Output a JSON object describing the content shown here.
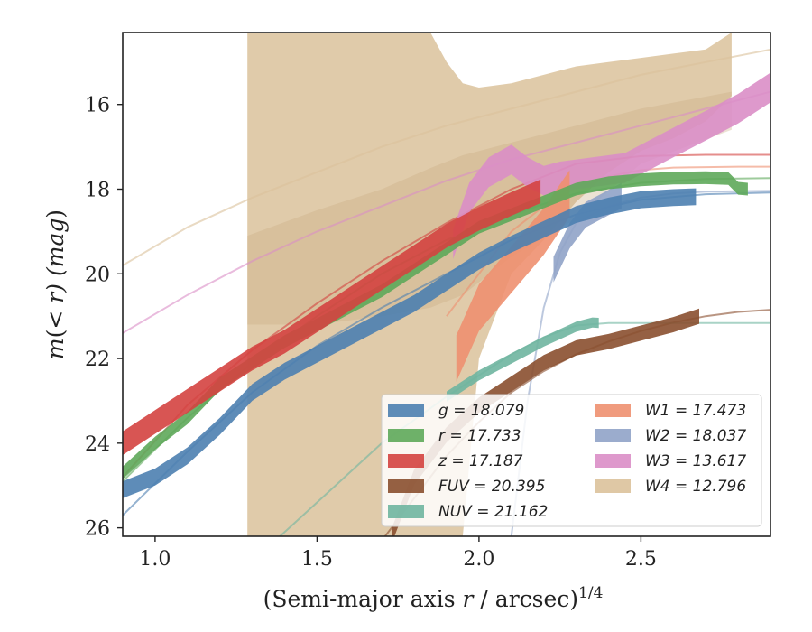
{
  "chart_data": {
    "type": "line",
    "xlabel": "(Semi-major axis r / arcsec)",
    "xlabel_sup": "1/4",
    "ylabel": "m(< r) (mag)",
    "xlim": [
      0.9,
      2.9
    ],
    "ylim": [
      26.2,
      14.3
    ],
    "y_inverted": true,
    "grid": false,
    "legend_position": "lower-right",
    "x_ticks": [
      1.0,
      1.5,
      2.0,
      2.5
    ],
    "x_tick_labels": [
      "1.0",
      "1.5",
      "2.0",
      "2.5"
    ],
    "y_ticks": [
      16,
      18,
      20,
      22,
      24,
      26
    ],
    "y_tick_labels": [
      "16",
      "18",
      "20",
      "22",
      "24",
      "26"
    ],
    "series": [
      {
        "name": "g = 18.079",
        "color": "#4c7fb0",
        "data_x": [
          0.9,
          1.0,
          1.1,
          1.2,
          1.3,
          1.4,
          1.5,
          1.6,
          1.7,
          1.8,
          1.9,
          2.0,
          2.1,
          2.2,
          2.3,
          2.4,
          2.5,
          2.6,
          2.67
        ],
        "data_y": [
          25.1,
          24.8,
          24.3,
          23.6,
          22.8,
          22.3,
          21.9,
          21.5,
          21.1,
          20.7,
          20.2,
          19.7,
          19.3,
          18.95,
          18.6,
          18.4,
          18.25,
          18.2,
          18.18
        ],
        "band_halfwidth": 0.2,
        "model_x": [
          0.9,
          1.1,
          1.3,
          1.5,
          1.7,
          1.9,
          2.1,
          2.3,
          2.5,
          2.7,
          2.9
        ],
        "model_y": [
          25.7,
          24.2,
          22.8,
          21.7,
          20.8,
          20.0,
          19.2,
          18.6,
          18.25,
          18.12,
          18.08
        ]
      },
      {
        "name": "r = 17.733",
        "color": "#5ea85a",
        "data_x": [
          0.9,
          1.0,
          1.1,
          1.2,
          1.3,
          1.4,
          1.5,
          1.6,
          1.7,
          1.8,
          1.9,
          2.0,
          2.1,
          2.2,
          2.3,
          2.4,
          2.5,
          2.6,
          2.7,
          2.77,
          2.8,
          2.83
        ],
        "data_y": [
          24.7,
          24.0,
          23.4,
          22.6,
          22.1,
          21.6,
          21.2,
          20.8,
          20.4,
          19.9,
          19.4,
          18.9,
          18.6,
          18.3,
          18.0,
          17.85,
          17.78,
          17.74,
          17.73,
          17.75,
          17.98,
          18.0
        ],
        "band_halfwidth": 0.15,
        "model_x": [
          0.9,
          1.1,
          1.3,
          1.5,
          1.7,
          1.9,
          2.1,
          2.3,
          2.5,
          2.7,
          2.9
        ],
        "model_y": [
          24.9,
          23.4,
          22.1,
          21.0,
          20.0,
          19.2,
          18.6,
          18.1,
          17.85,
          17.76,
          17.74
        ]
      },
      {
        "name": "z = 17.187",
        "color": "#d44240",
        "data_x": [
          0.9,
          1.0,
          1.1,
          1.2,
          1.3,
          1.4,
          1.5,
          1.6,
          1.7,
          1.8,
          1.9,
          2.0,
          2.1,
          2.19
        ],
        "data_y": [
          24.0,
          23.5,
          23.0,
          22.5,
          22.0,
          21.6,
          21.1,
          20.6,
          20.1,
          19.6,
          19.1,
          18.7,
          18.35,
          18.05
        ],
        "band_halfwidth": 0.28,
        "model_x": [
          0.9,
          1.1,
          1.3,
          1.5,
          1.7,
          1.9,
          2.1,
          2.3,
          2.5,
          2.7,
          2.9
        ],
        "model_y": [
          24.8,
          23.1,
          21.8,
          20.7,
          19.7,
          18.8,
          18.0,
          17.4,
          17.22,
          17.19,
          17.19
        ]
      },
      {
        "name": "FUV = 20.395",
        "color": "#8a4f2f",
        "data_x": [
          1.73,
          1.8,
          1.9,
          2.0,
          2.1,
          2.2,
          2.3,
          2.4,
          2.5,
          2.6,
          2.68
        ],
        "data_y": [
          26.2,
          24.8,
          23.8,
          23.1,
          22.6,
          22.1,
          21.75,
          21.6,
          21.4,
          21.2,
          21.0
        ],
        "band_halfwidth": 0.18,
        "model_x": [
          1.7,
          1.8,
          1.9,
          2.0,
          2.1,
          2.2,
          2.3,
          2.4,
          2.5,
          2.6,
          2.7,
          2.8,
          2.9
        ],
        "model_y": [
          26.3,
          25.3,
          24.3,
          23.5,
          22.8,
          22.3,
          21.9,
          21.6,
          21.35,
          21.15,
          21.0,
          20.9,
          20.85
        ]
      },
      {
        "name": "NUV = 21.162",
        "color": "#6fb5a0",
        "data_x": [
          1.9,
          2.0,
          2.1,
          2.2,
          2.3,
          2.35,
          2.37
        ],
        "data_y": [
          22.9,
          22.4,
          22.0,
          21.6,
          21.25,
          21.15,
          21.16
        ],
        "band_halfwidth": 0.12,
        "model_x": [
          1.3,
          1.5,
          1.7,
          1.9,
          2.0,
          2.1,
          2.2,
          2.3,
          2.4,
          2.6,
          2.9
        ],
        "model_y": [
          26.8,
          25.4,
          24.0,
          22.9,
          22.4,
          21.9,
          21.5,
          21.22,
          21.16,
          21.16,
          21.16
        ]
      },
      {
        "name": "W1 = 17.473",
        "color": "#ee9070",
        "data_x": [
          1.93,
          2.0,
          2.1,
          2.2,
          2.28
        ],
        "data_y": [
          22.0,
          20.8,
          19.9,
          19.0,
          18.1
        ],
        "band_halfwidth": 0.55,
        "model_x": [
          1.9,
          2.0,
          2.1,
          2.2,
          2.3,
          2.4,
          2.5,
          2.6,
          2.7,
          2.8,
          2.9
        ],
        "model_y": [
          21.0,
          20.0,
          19.0,
          18.4,
          17.95,
          17.7,
          17.55,
          17.49,
          17.48,
          17.47,
          17.47
        ]
      },
      {
        "name": "W2 = 18.037",
        "color": "#90a3c8",
        "data_x": [
          2.23,
          2.28,
          2.33,
          2.38,
          2.44
        ],
        "data_y": [
          19.9,
          19.1,
          18.6,
          18.4,
          18.15
        ],
        "band_halfwidth": 0.3,
        "model_x": [
          2.1,
          2.15,
          2.2,
          2.25,
          2.3,
          2.4,
          2.5,
          2.6,
          2.7,
          2.8,
          2.9
        ],
        "model_y": [
          26.2,
          23.0,
          20.8,
          19.5,
          18.8,
          18.4,
          18.2,
          18.1,
          18.06,
          18.05,
          18.04
        ]
      },
      {
        "name": "W3 = 13.617",
        "color": "#da8ec6",
        "data_x": [
          1.92,
          1.97,
          2.03,
          2.1,
          2.15,
          2.2,
          2.25,
          2.35,
          2.45,
          2.5,
          2.6,
          2.7,
          2.8,
          2.9
        ],
        "data_y": [
          19.3,
          18.2,
          17.6,
          17.3,
          17.6,
          17.8,
          17.7,
          17.6,
          17.5,
          17.3,
          16.9,
          16.5,
          16.1,
          15.6
        ],
        "band_halfwidth": 0.35,
        "model_x": [
          0.9,
          1.1,
          1.3,
          1.5,
          1.7,
          1.9,
          2.1,
          2.3,
          2.5,
          2.7,
          2.9
        ],
        "model_y": [
          21.4,
          20.5,
          19.7,
          19.0,
          18.4,
          17.8,
          17.3,
          16.9,
          16.5,
          16.1,
          15.7
        ]
      },
      {
        "name": "W4 = 12.796",
        "color": "#dbc29b",
        "band_x": [
          1.285,
          1.4,
          1.5,
          1.6,
          1.7,
          1.75,
          1.8,
          1.85,
          1.9,
          1.95,
          2.0,
          2.1,
          2.2,
          2.3,
          2.4,
          2.5,
          2.6,
          2.7,
          2.78
        ],
        "band_upper": [
          14.3,
          14.3,
          14.3,
          14.3,
          14.3,
          14.3,
          14.3,
          14.3,
          15.0,
          15.5,
          15.6,
          15.5,
          15.3,
          15.1,
          15.0,
          14.9,
          14.8,
          14.7,
          14.3
        ],
        "band_lower": [
          26.2,
          26.2,
          26.2,
          26.2,
          26.2,
          26.2,
          26.2,
          26.2,
          26.2,
          26.2,
          22.0,
          20.0,
          19.2,
          18.3,
          17.6,
          17.1,
          16.8,
          16.4,
          15.8
        ],
        "inner_x": [
          1.285,
          1.5,
          1.7,
          1.85,
          1.95,
          2.1,
          2.3,
          2.5,
          2.78
        ],
        "inner_upper": [
          19.1,
          18.5,
          18.0,
          17.5,
          17.2,
          16.9,
          16.5,
          16.1,
          15.7
        ],
        "inner_lower": [
          21.2,
          21.2,
          21.0,
          20.8,
          20.5,
          19.6,
          18.7,
          17.4,
          16.6
        ],
        "model_x": [
          0.9,
          1.1,
          1.3,
          1.5,
          1.7,
          1.9,
          2.1,
          2.3,
          2.5,
          2.7,
          2.9
        ],
        "model_y": [
          19.8,
          18.9,
          18.2,
          17.6,
          17.0,
          16.5,
          16.1,
          15.7,
          15.3,
          15.0,
          14.7
        ]
      }
    ],
    "legend_entries": [
      {
        "label": "g = 18.079",
        "color": "#4c7fb0"
      },
      {
        "label": "r = 17.733",
        "color": "#5ea85a"
      },
      {
        "label": "z = 17.187",
        "color": "#d44240"
      },
      {
        "label": "FUV = 20.395",
        "color": "#8a4f2f"
      },
      {
        "label": "NUV = 21.162",
        "color": "#6fb5a0"
      },
      {
        "label": "W1 = 17.473",
        "color": "#ee9070"
      },
      {
        "label": "W2 = 18.037",
        "color": "#90a3c8"
      },
      {
        "label": "W3 = 13.617",
        "color": "#da8ec6"
      },
      {
        "label": "W4 = 12.796",
        "color": "#dbc29b"
      }
    ]
  }
}
